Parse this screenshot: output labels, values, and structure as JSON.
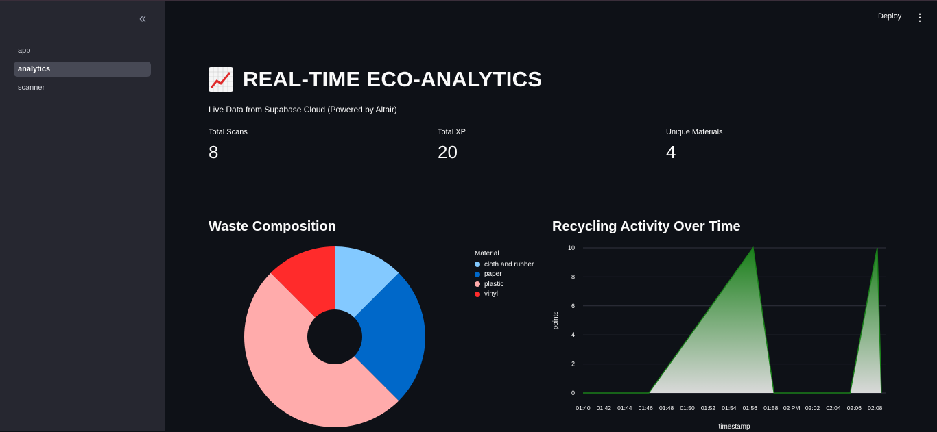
{
  "sidebar": {
    "collapse_icon": "«",
    "items": [
      {
        "label": "app",
        "active": false
      },
      {
        "label": "analytics",
        "active": true
      },
      {
        "label": "scanner",
        "active": false
      }
    ]
  },
  "header": {
    "deploy_label": "Deploy",
    "menu_icon": "⋮"
  },
  "page": {
    "title": "REAL-TIME ECO-ANALYTICS",
    "subtitle": "Live Data from Supabase Cloud (Powered by Altair)"
  },
  "metrics": [
    {
      "label": "Total Scans",
      "value": "8"
    },
    {
      "label": "Total XP",
      "value": "20"
    },
    {
      "label": "Unique Materials",
      "value": "4"
    }
  ],
  "colors": {
    "cloth_and_rubber": "#83c9ff",
    "paper": "#0068c9",
    "plastic": "#ffabab",
    "vinyl": "#ff2b2b",
    "area": "#1a7f1a"
  },
  "sections": {
    "pie_title": "Waste Composition",
    "area_title": "Recycling Activity Over Time"
  },
  "chart_data": [
    {
      "type": "pie",
      "title": "Waste Composition",
      "legend_title": "Material",
      "legend_position": "right",
      "categories": [
        "cloth and rubber",
        "paper",
        "plastic",
        "vinyl"
      ],
      "values": [
        1,
        2,
        4,
        1
      ],
      "colors": [
        "#83c9ff",
        "#0068c9",
        "#ffabab",
        "#ff2b2b"
      ]
    },
    {
      "type": "area",
      "title": "Recycling Activity Over Time",
      "xlabel": "timestamp",
      "ylabel": "points",
      "ylim": [
        0,
        10
      ],
      "yticks": [
        0,
        2,
        4,
        6,
        8,
        10
      ],
      "x_tick_labels": [
        "01:40",
        "01:42",
        "01:44",
        "01:46",
        "01:48",
        "01:50",
        "01:52",
        "01:54",
        "01:56",
        "01:58",
        "02 PM",
        "02:02",
        "02:04",
        "02:06",
        "02:08"
      ],
      "grid": true,
      "x": [
        "01:40",
        "01:46.3",
        "01:56.3",
        "01:58.3",
        "02:05.6",
        "02:08.2",
        "02:08.6"
      ],
      "values": [
        0,
        0,
        10,
        0,
        0,
        10,
        0
      ]
    }
  ]
}
